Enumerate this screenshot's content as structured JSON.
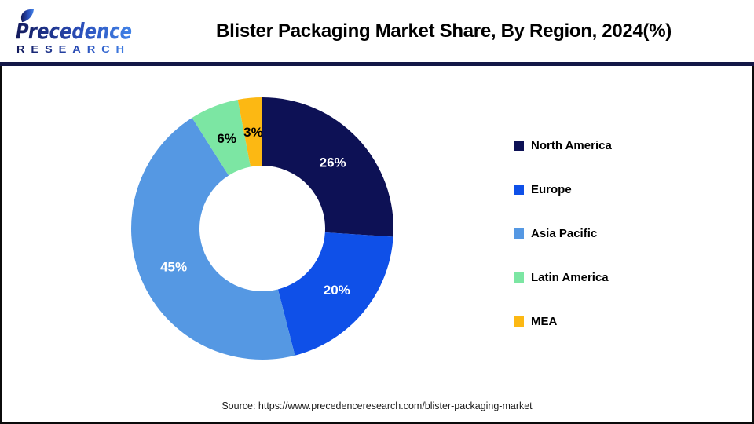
{
  "header": {
    "logo": {
      "brand": "Precedence",
      "sub": "RESEARCH"
    },
    "title": "Blister Packaging Market Share, By Region, 2024(%)"
  },
  "chart_data": {
    "type": "pie",
    "subtype": "donut",
    "title": "Blister Packaging Market Share, By Region, 2024(%)",
    "categories": [
      "North America",
      "Europe",
      "Asia Pacific",
      "Latin America",
      "MEA"
    ],
    "values": [
      26,
      20,
      45,
      6,
      3
    ],
    "unit": "%",
    "labels": [
      "26%",
      "20%",
      "45%",
      "6%",
      "3%"
    ],
    "label_colors": [
      "#ffffff",
      "#ffffff",
      "#ffffff",
      "#000000",
      "#000000"
    ],
    "colors": [
      "#0d1155",
      "#0f50e8",
      "#5598e3",
      "#7ce6a3",
      "#fcb813"
    ],
    "start_angle_deg": 0,
    "direction": "clockwise",
    "inner_radius_ratio": 0.48,
    "legend_position": "right"
  },
  "footer": {
    "source": "Source: https://www.precedenceresearch.com/blister-packaging-market"
  },
  "theme": {
    "separator_color": "#131747",
    "frame_color": "#0b0b0b",
    "logo_gradient_start": "#131a5c",
    "logo_gradient_end": "#4183e8"
  }
}
